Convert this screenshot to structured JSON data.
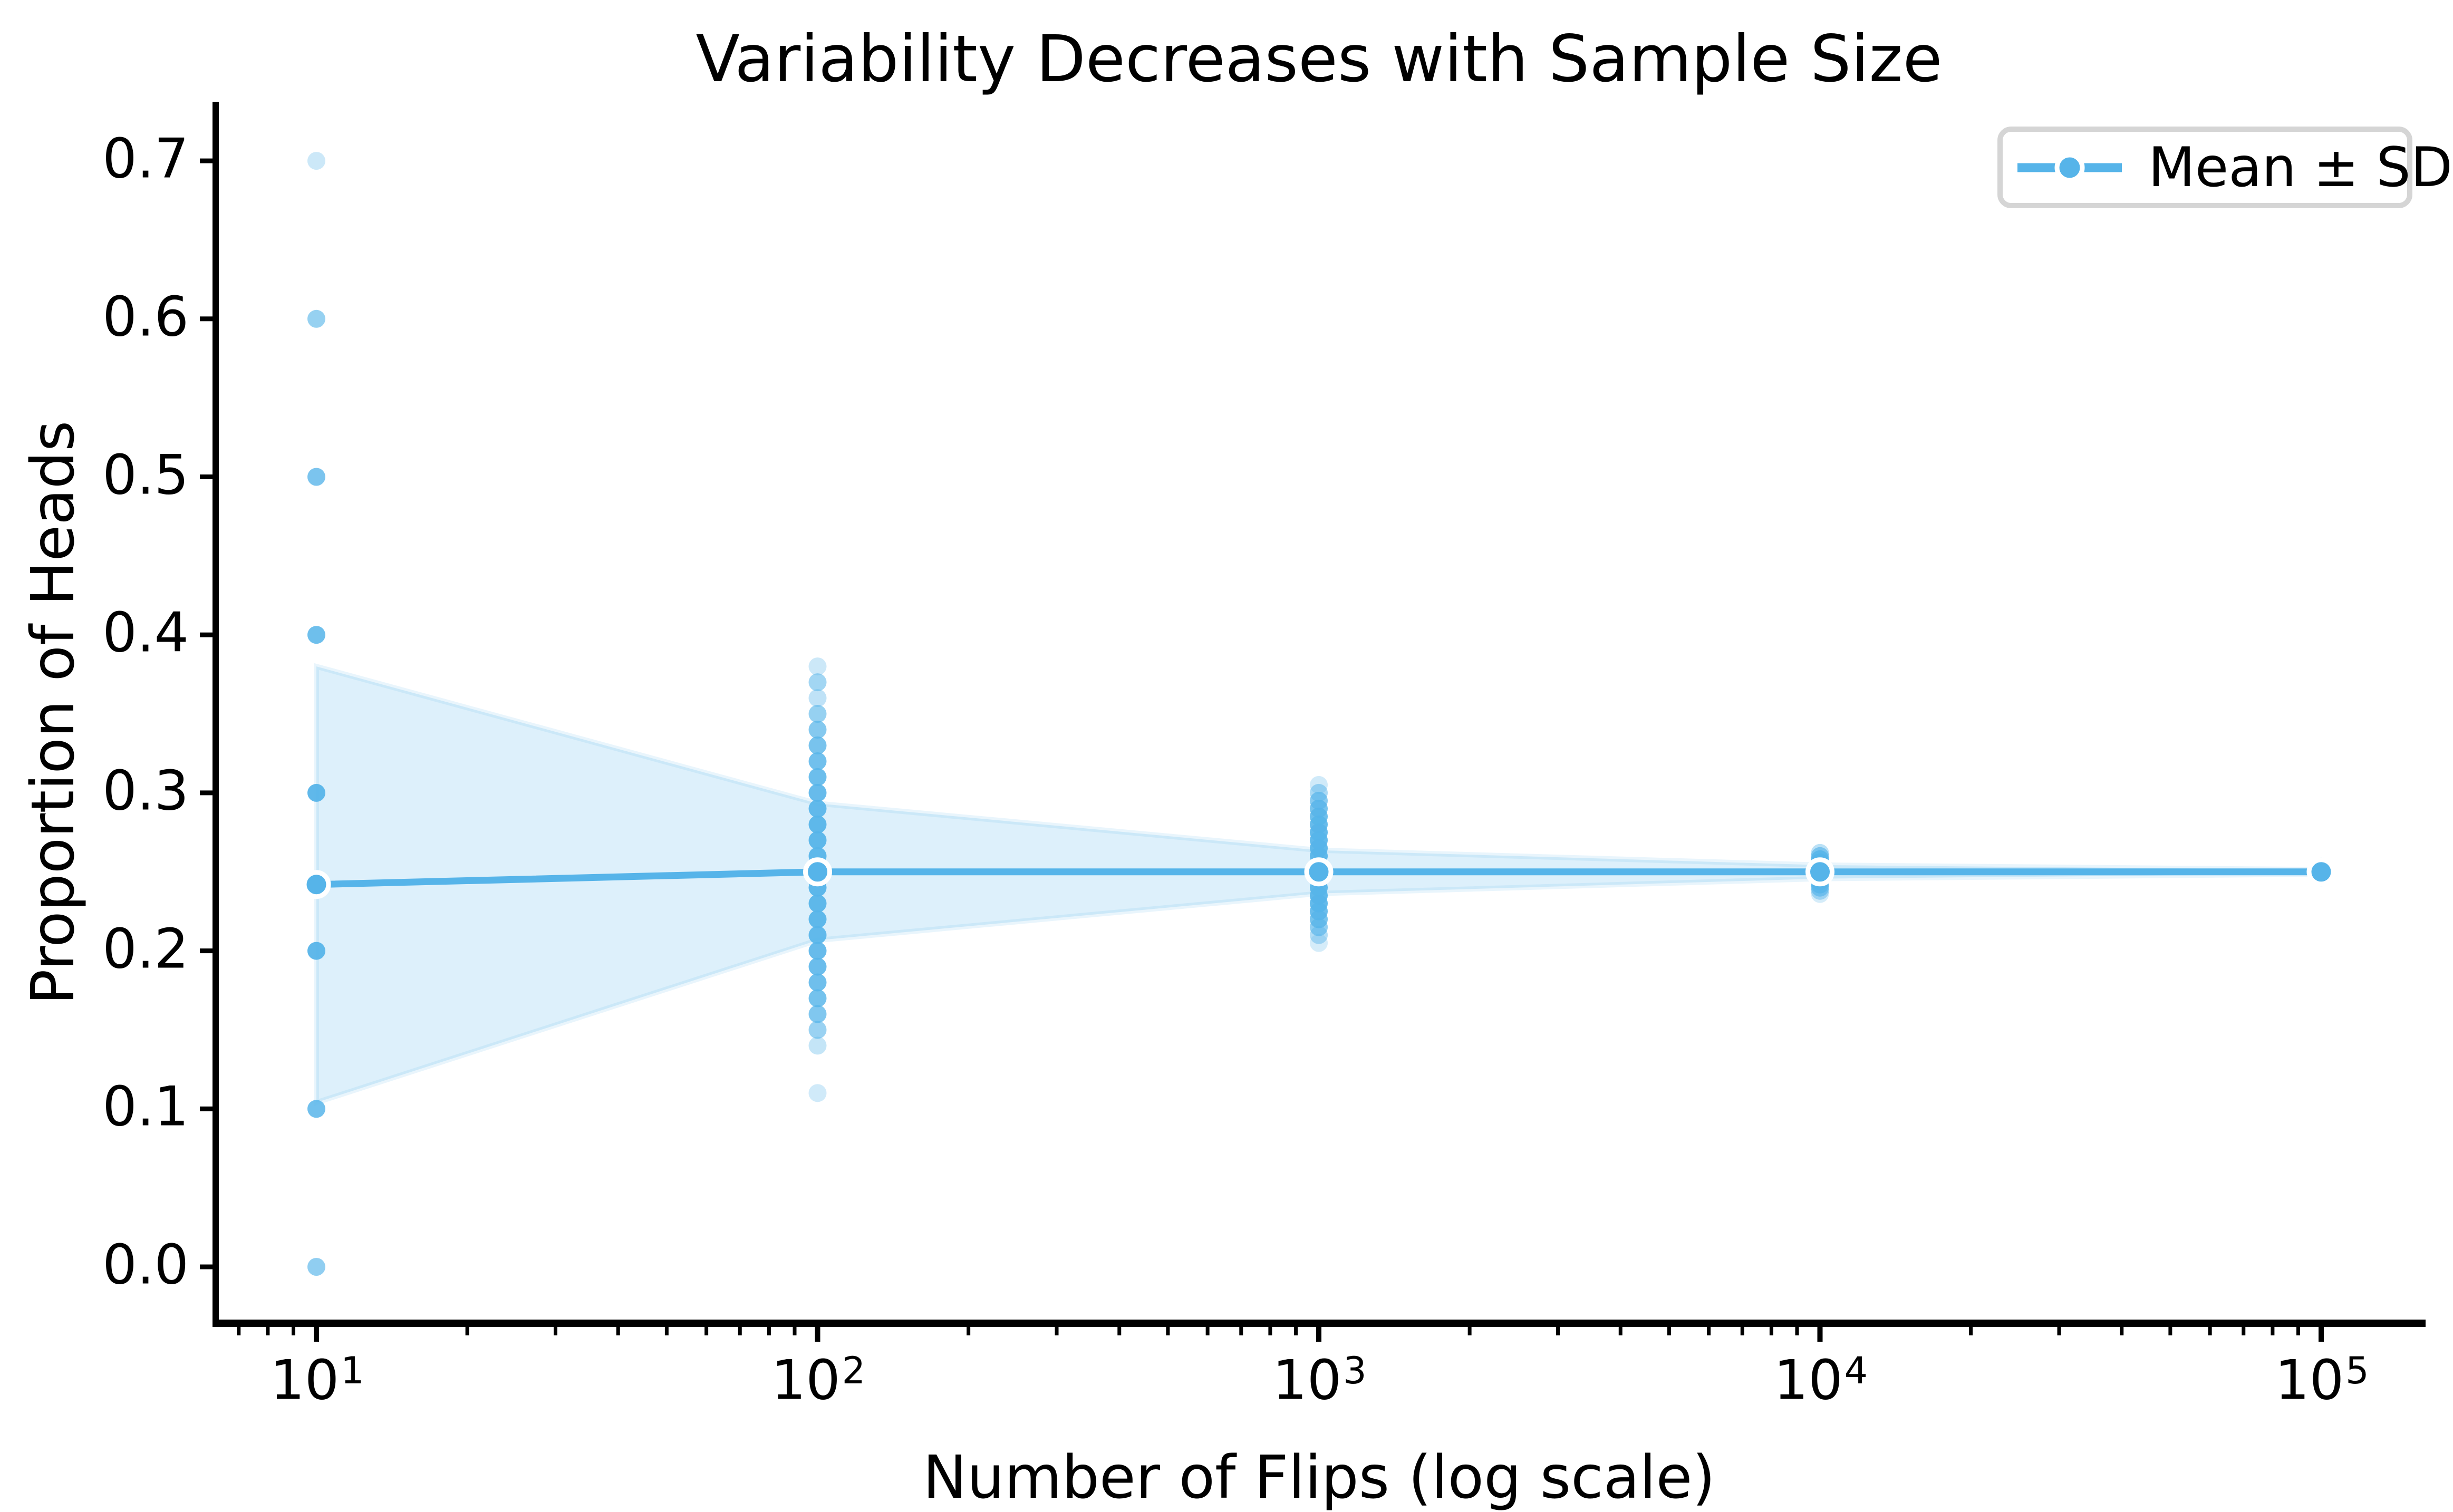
{
  "page": {
    "title": "Variability Decreases with Sample Size"
  },
  "legend": {
    "label": "Mean ± SD"
  },
  "axis": {
    "x_tick_base": "10",
    "x_tick_exponents": [
      1,
      2,
      3,
      4,
      5
    ],
    "y_tick_labels": [
      "0.0",
      "0.1",
      "0.2",
      "0.3",
      "0.4",
      "0.5",
      "0.6",
      "0.7"
    ],
    "y_tick_values": [
      0.0,
      0.1,
      0.2,
      0.3,
      0.4,
      0.5,
      0.6,
      0.7
    ]
  },
  "chart_data": {
    "type": "scatter",
    "title": "Variability Decreases with Sample Size",
    "xlabel": "Number of Flips (log scale)",
    "ylabel": "Proportion of Heads",
    "x_scale": "log",
    "xlim": [
      6.3,
      160000
    ],
    "ylim": [
      -0.035,
      0.737
    ],
    "grid": false,
    "legend_position": "upper right",
    "legend_entries": [
      "Mean ± SD"
    ],
    "sample_sizes": [
      10,
      100,
      1000,
      10000,
      100000
    ],
    "series": [
      {
        "name": "Mean ± SD",
        "x": [
          10,
          100,
          1000,
          10000,
          100000
        ],
        "means": [
          0.242,
          0.25,
          0.25,
          0.25,
          0.25
        ],
        "sds": [
          0.138,
          0.0433,
          0.0137,
          0.0043,
          0.0014
        ]
      }
    ],
    "scatter": [
      {
        "n": 10,
        "points": [
          [
            0.0,
            0.66
          ],
          [
            0.1,
            0.84
          ],
          [
            0.2,
            0.94
          ],
          [
            0.3,
            0.94
          ],
          [
            0.4,
            0.86
          ],
          [
            0.5,
            0.78
          ],
          [
            0.6,
            0.62
          ],
          [
            0.7,
            0.3
          ]
        ]
      },
      {
        "n": 100,
        "points": [
          [
            0.11,
            0.28
          ],
          [
            0.14,
            0.35
          ],
          [
            0.15,
            0.6
          ],
          [
            0.16,
            0.75
          ],
          [
            0.17,
            0.82
          ],
          [
            0.18,
            0.85
          ],
          [
            0.19,
            0.88
          ],
          [
            0.2,
            0.9
          ],
          [
            0.21,
            0.92
          ],
          [
            0.22,
            0.94
          ],
          [
            0.23,
            0.95
          ],
          [
            0.24,
            0.96
          ],
          [
            0.25,
            0.96
          ],
          [
            0.26,
            0.95
          ],
          [
            0.27,
            0.95
          ],
          [
            0.28,
            0.94
          ],
          [
            0.29,
            0.92
          ],
          [
            0.3,
            0.9
          ],
          [
            0.31,
            0.87
          ],
          [
            0.32,
            0.84
          ],
          [
            0.33,
            0.8
          ],
          [
            0.34,
            0.72
          ],
          [
            0.35,
            0.62
          ],
          [
            0.36,
            0.38
          ],
          [
            0.37,
            0.55
          ],
          [
            0.38,
            0.3
          ]
        ]
      },
      {
        "n": 1000,
        "points": [
          [
            0.205,
            0.25
          ],
          [
            0.21,
            0.45
          ],
          [
            0.215,
            0.65
          ],
          [
            0.22,
            0.8
          ],
          [
            0.225,
            0.88
          ],
          [
            0.23,
            0.92
          ],
          [
            0.235,
            0.94
          ],
          [
            0.24,
            0.95
          ],
          [
            0.245,
            0.96
          ],
          [
            0.25,
            0.96
          ],
          [
            0.255,
            0.96
          ],
          [
            0.26,
            0.95
          ],
          [
            0.265,
            0.94
          ],
          [
            0.27,
            0.93
          ],
          [
            0.275,
            0.92
          ],
          [
            0.28,
            0.9
          ],
          [
            0.285,
            0.86
          ],
          [
            0.29,
            0.8
          ],
          [
            0.295,
            0.7
          ],
          [
            0.3,
            0.5
          ],
          [
            0.305,
            0.28
          ]
        ]
      },
      {
        "n": 10000,
        "points": [
          [
            0.236,
            0.25
          ],
          [
            0.238,
            0.45
          ],
          [
            0.24,
            0.65
          ],
          [
            0.242,
            0.8
          ],
          [
            0.244,
            0.9
          ],
          [
            0.246,
            0.94
          ],
          [
            0.248,
            0.96
          ],
          [
            0.25,
            0.96
          ],
          [
            0.252,
            0.96
          ],
          [
            0.254,
            0.94
          ],
          [
            0.256,
            0.9
          ],
          [
            0.258,
            0.82
          ],
          [
            0.26,
            0.65
          ],
          [
            0.262,
            0.4
          ]
        ]
      },
      {
        "n": 100000,
        "points": [
          [
            0.2465,
            0.3
          ],
          [
            0.2475,
            0.6
          ],
          [
            0.2485,
            0.85
          ],
          [
            0.2495,
            0.95
          ],
          [
            0.2505,
            0.95
          ],
          [
            0.2515,
            0.85
          ],
          [
            0.2525,
            0.6
          ],
          [
            0.2535,
            0.3
          ]
        ]
      }
    ],
    "colors": {
      "accent": "#56B4E9",
      "band_fill_alpha": 0.2,
      "band_edge_alpha": 0.13,
      "marker_edge": "#FFFFFF",
      "text": "#000000",
      "axis": "#000000",
      "legend_border": "#D5D5D5"
    }
  }
}
